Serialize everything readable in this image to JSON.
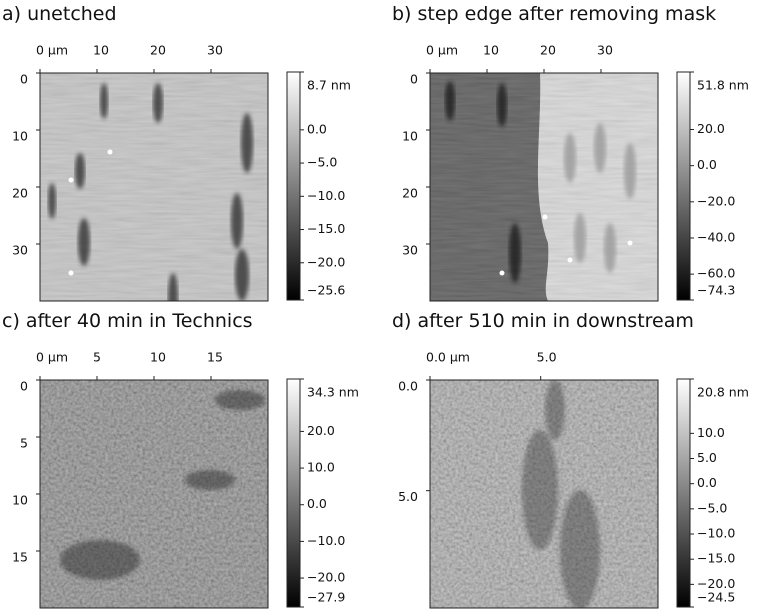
{
  "chart_data": [
    {
      "type": "image",
      "title": "a) unetched",
      "xlim": [
        0,
        40
      ],
      "ylim": [
        0,
        40
      ],
      "xticks": [
        {
          "value": 0,
          "label": "0 µm"
        },
        10,
        20,
        30
      ],
      "yticks": [
        0,
        10,
        20,
        30
      ],
      "clim": [
        -25.6,
        8.7
      ],
      "cticks": [
        {
          "value": 8.7,
          "label": "8.7 nm"
        },
        {
          "value": 0,
          "label": "0.0"
        },
        {
          "value": -5,
          "label": "−5.0"
        },
        {
          "value": -10,
          "label": "−10.0"
        },
        {
          "value": -15,
          "label": "−15.0"
        },
        {
          "value": -20,
          "label": "−20.0"
        },
        {
          "value": -25.6,
          "label": "−25.6"
        }
      ]
    },
    {
      "type": "image",
      "title": "b) step edge after removing mask",
      "xlim": [
        0,
        40
      ],
      "ylim": [
        0,
        40
      ],
      "xticks": [
        {
          "value": 0,
          "label": "0 µm"
        },
        10,
        20,
        30
      ],
      "yticks": [
        0,
        10,
        20,
        30
      ],
      "clim": [
        -74.3,
        51.8
      ],
      "cticks": [
        {
          "value": 51.8,
          "label": "51.8 nm"
        },
        {
          "value": 20,
          "label": "20.0"
        },
        {
          "value": 0,
          "label": "0.0"
        },
        {
          "value": -20,
          "label": "−20.0"
        },
        {
          "value": -40,
          "label": "−40.0"
        },
        {
          "value": -60,
          "label": "−60.0"
        },
        {
          "value": -74.3,
          "label": "−74.3"
        }
      ]
    },
    {
      "type": "image",
      "title": "c) after 40 min in Technics",
      "xlim": [
        0,
        20
      ],
      "ylim": [
        0,
        20
      ],
      "xticks": [
        {
          "value": 0,
          "label": "0 µm"
        },
        5,
        10,
        15
      ],
      "yticks": [
        0,
        5,
        10,
        15
      ],
      "clim": [
        -27.9,
        34.3
      ],
      "cticks": [
        {
          "value": 34.3,
          "label": "34.3 nm"
        },
        {
          "value": 20,
          "label": "20.0"
        },
        {
          "value": 10,
          "label": "10.0"
        },
        {
          "value": 0,
          "label": "0.0"
        },
        {
          "value": -10,
          "label": "−10.0"
        },
        {
          "value": -20,
          "label": "−20.0"
        },
        {
          "value": -27.9,
          "label": "−27.9"
        }
      ]
    },
    {
      "type": "image",
      "title": "d) after 510 min in downstream",
      "xlim": [
        0,
        10.3
      ],
      "ylim": [
        0,
        10.3
      ],
      "xticks": [
        {
          "value": 0,
          "label": "0.0 µm"
        },
        {
          "value": 5,
          "label": "5.0"
        }
      ],
      "yticks": [
        {
          "value": 0,
          "label": "0.0"
        },
        {
          "value": 5,
          "label": "5.0"
        }
      ],
      "clim": [
        -24.5,
        20.8
      ],
      "cticks": [
        {
          "value": 20.8,
          "label": "20.8 nm"
        },
        {
          "value": 10,
          "label": "10.0"
        },
        {
          "value": 5,
          "label": "5.0"
        },
        {
          "value": 0,
          "label": "0.0"
        },
        {
          "value": -5,
          "label": "−5.0"
        },
        {
          "value": -10,
          "label": "−10.0"
        },
        {
          "value": -15,
          "label": "−15.0"
        },
        {
          "value": -20,
          "label": "−20.0"
        },
        {
          "value": -24.5,
          "label": "−24.5"
        }
      ]
    }
  ]
}
